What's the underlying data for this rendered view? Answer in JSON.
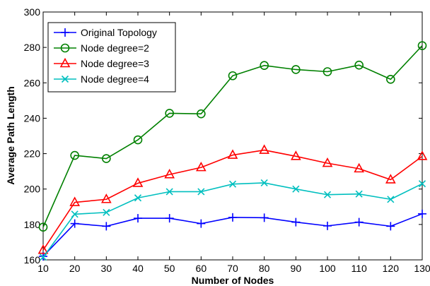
{
  "chart_data": {
    "type": "line",
    "xlabel": "Number of Nodes",
    "ylabel": "Average Path Length",
    "x": [
      10,
      20,
      30,
      40,
      50,
      60,
      70,
      80,
      90,
      100,
      110,
      120,
      130
    ],
    "xlim": [
      10,
      130
    ],
    "ylim": [
      160,
      300
    ],
    "xticks": [
      10,
      20,
      30,
      40,
      50,
      60,
      70,
      80,
      90,
      100,
      110,
      120,
      130
    ],
    "yticks": [
      160,
      180,
      200,
      220,
      240,
      260,
      280,
      300
    ],
    "grid": false,
    "legend_position": "top-left",
    "series": [
      {
        "name": "Original Topology",
        "color": "#0000ff",
        "marker": "plus",
        "values": [
          162,
          180.5,
          179,
          183.5,
          183.5,
          180.5,
          184,
          183.8,
          181.3,
          179.2,
          181.3,
          179,
          186
        ]
      },
      {
        "name": "Node degree=2",
        "color": "#008000",
        "marker": "circle",
        "values": [
          178.5,
          219,
          217.2,
          227.8,
          242.8,
          242.5,
          264,
          269.8,
          267.5,
          266.3,
          270,
          262,
          281
        ]
      },
      {
        "name": "Node degree=3",
        "color": "#ff0000",
        "marker": "triangle",
        "values": [
          165.5,
          192.5,
          194.2,
          203.3,
          208.2,
          212.2,
          219.2,
          222,
          218.5,
          214.6,
          211.5,
          205.3,
          218.5
        ]
      },
      {
        "name": "Node degree=4",
        "color": "#00bfbf",
        "marker": "x",
        "values": [
          161.5,
          185.8,
          186.8,
          195,
          198.5,
          198.5,
          202.8,
          203.5,
          200,
          196.8,
          197.2,
          194.2,
          203
        ]
      }
    ]
  }
}
